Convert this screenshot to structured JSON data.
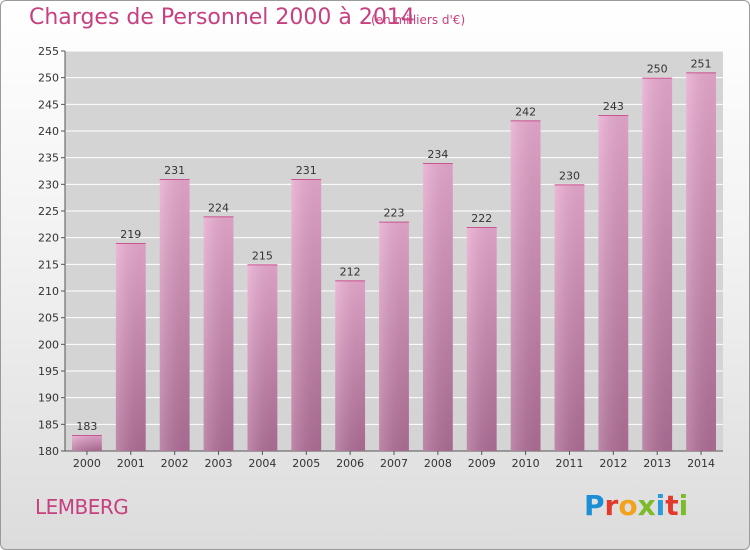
{
  "header": {
    "title": "Charges de Personnel 2000 à 2014",
    "subtitle": "(en milliers d'€)"
  },
  "footer": {
    "commune": "LEMBERG",
    "logo_letters": [
      "P",
      "r",
      "o",
      "x",
      "i",
      "t",
      "i"
    ]
  },
  "colors": {
    "title": "#c7407f",
    "bar_top": "#e9aad0",
    "bar_bottom": "#b06e97",
    "grid": "#ffffff",
    "plot_bg": "#d4d4d4"
  },
  "chart_data": {
    "type": "bar",
    "title": "Charges de Personnel 2000 à 2014",
    "subtitle": "(en milliers d'€)",
    "categories": [
      "2000",
      "2001",
      "2002",
      "2003",
      "2004",
      "2005",
      "2006",
      "2007",
      "2008",
      "2009",
      "2010",
      "2011",
      "2012",
      "2013",
      "2014"
    ],
    "values": [
      183,
      219,
      231,
      224,
      215,
      231,
      212,
      223,
      234,
      222,
      242,
      230,
      243,
      250,
      251
    ],
    "ylim": [
      180,
      255
    ],
    "yticks": [
      180,
      185,
      190,
      195,
      200,
      205,
      210,
      215,
      220,
      225,
      230,
      235,
      240,
      245,
      250,
      255
    ],
    "xlabel": "",
    "ylabel": "",
    "grid": true
  }
}
